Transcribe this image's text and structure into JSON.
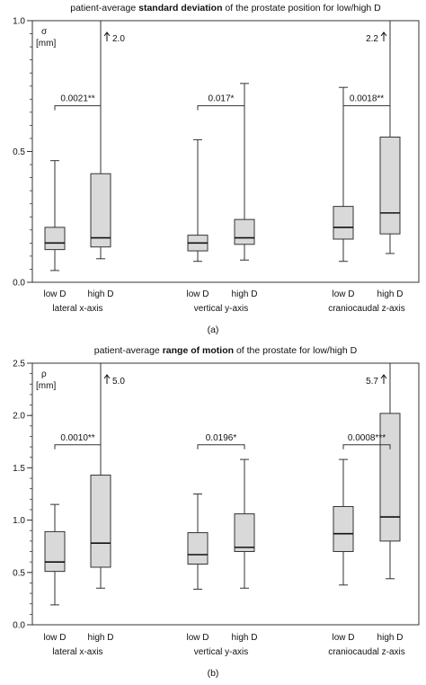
{
  "chart_data": [
    {
      "type": "boxplot",
      "panel_label": "(a)",
      "title_parts": [
        {
          "text": "patient-average ",
          "bold": false
        },
        {
          "text": "standard deviation",
          "bold": true
        },
        {
          "text": " of the prostate position for low/high D",
          "bold": false
        }
      ],
      "ylabel_symbol": "σ",
      "ylabel_unit": "[mm]",
      "ylim": [
        0,
        1.0
      ],
      "y_ticks": [
        {
          "value": 0.0,
          "label": "0.0"
        },
        {
          "value": 0.5,
          "label": "0.5"
        },
        {
          "value": 1.0,
          "label": "1.0"
        }
      ],
      "y_minor_step": 0.05,
      "groups": [
        {
          "axis_label": "lateral x-axis",
          "pvalue_label": "0.0021**"
        },
        {
          "axis_label": "vertical y-axis",
          "pvalue_label": "0.017*"
        },
        {
          "axis_label": "craniocaudal z-axis",
          "pvalue_label": "0.0018**"
        }
      ],
      "box_labels": [
        "low D",
        "high D"
      ],
      "boxes": [
        {
          "group": 0,
          "label": "low D",
          "whisker_low": 0.045,
          "q1": 0.125,
          "median": 0.15,
          "q3": 0.21,
          "whisker_high": 0.465
        },
        {
          "group": 0,
          "label": "high D",
          "whisker_low": 0.09,
          "q1": 0.135,
          "median": 0.17,
          "q3": 0.415,
          "whisker_high": 1.0,
          "overflow_label": "2.0",
          "overflow_side": "right"
        },
        {
          "group": 1,
          "label": "low D",
          "whisker_low": 0.08,
          "q1": 0.12,
          "median": 0.15,
          "q3": 0.18,
          "whisker_high": 0.545
        },
        {
          "group": 1,
          "label": "high D",
          "whisker_low": 0.085,
          "q1": 0.145,
          "median": 0.17,
          "q3": 0.24,
          "whisker_high": 0.76
        },
        {
          "group": 2,
          "label": "low D",
          "whisker_low": 0.08,
          "q1": 0.165,
          "median": 0.21,
          "q3": 0.29,
          "whisker_high": 0.745
        },
        {
          "group": 2,
          "label": "high D",
          "whisker_low": 0.11,
          "q1": 0.185,
          "median": 0.265,
          "q3": 0.555,
          "whisker_high": 1.0,
          "overflow_label": "2.2",
          "overflow_side": "left"
        }
      ],
      "bracket_levels": [
        0.675,
        0.675,
        0.675
      ]
    },
    {
      "type": "boxplot",
      "panel_label": "(b)",
      "title_parts": [
        {
          "text": "patient-average ",
          "bold": false
        },
        {
          "text": "range of motion",
          "bold": true
        },
        {
          "text": " of the prostate for low/high D",
          "bold": false
        }
      ],
      "ylabel_symbol": "ρ",
      "ylabel_unit": "[mm]",
      "ylim": [
        0,
        2.5
      ],
      "y_ticks": [
        {
          "value": 0.0,
          "label": "0.0"
        },
        {
          "value": 0.5,
          "label": "0.5"
        },
        {
          "value": 1.0,
          "label": "1.0"
        },
        {
          "value": 1.5,
          "label": "1.5"
        },
        {
          "value": 2.0,
          "label": "2.0"
        },
        {
          "value": 2.5,
          "label": "2.5"
        }
      ],
      "y_minor_step": 0.1,
      "groups": [
        {
          "axis_label": "lateral x-axis",
          "pvalue_label": "0.0010**"
        },
        {
          "axis_label": "vertical y-axis",
          "pvalue_label": "0.0196*"
        },
        {
          "axis_label": "craniocaudal z-axis",
          "pvalue_label": "0.0008***"
        }
      ],
      "box_labels": [
        "low D",
        "high D"
      ],
      "boxes": [
        {
          "group": 0,
          "label": "low D",
          "whisker_low": 0.19,
          "q1": 0.51,
          "median": 0.6,
          "q3": 0.89,
          "whisker_high": 1.15
        },
        {
          "group": 0,
          "label": "high D",
          "whisker_low": 0.35,
          "q1": 0.55,
          "median": 0.78,
          "q3": 1.43,
          "whisker_high": 2.5,
          "overflow_label": "5.0",
          "overflow_side": "right"
        },
        {
          "group": 1,
          "label": "low D",
          "whisker_low": 0.34,
          "q1": 0.58,
          "median": 0.67,
          "q3": 0.88,
          "whisker_high": 1.25
        },
        {
          "group": 1,
          "label": "high D",
          "whisker_low": 0.35,
          "q1": 0.7,
          "median": 0.74,
          "q3": 1.06,
          "whisker_high": 1.58
        },
        {
          "group": 2,
          "label": "low D",
          "whisker_low": 0.38,
          "q1": 0.7,
          "median": 0.87,
          "q3": 1.13,
          "whisker_high": 1.58
        },
        {
          "group": 2,
          "label": "high D",
          "whisker_low": 0.44,
          "q1": 0.8,
          "median": 1.03,
          "q3": 2.02,
          "whisker_high": 2.5,
          "overflow_label": "5.7",
          "overflow_side": "left"
        }
      ],
      "bracket_levels": [
        1.72,
        1.72,
        1.72
      ]
    }
  ]
}
